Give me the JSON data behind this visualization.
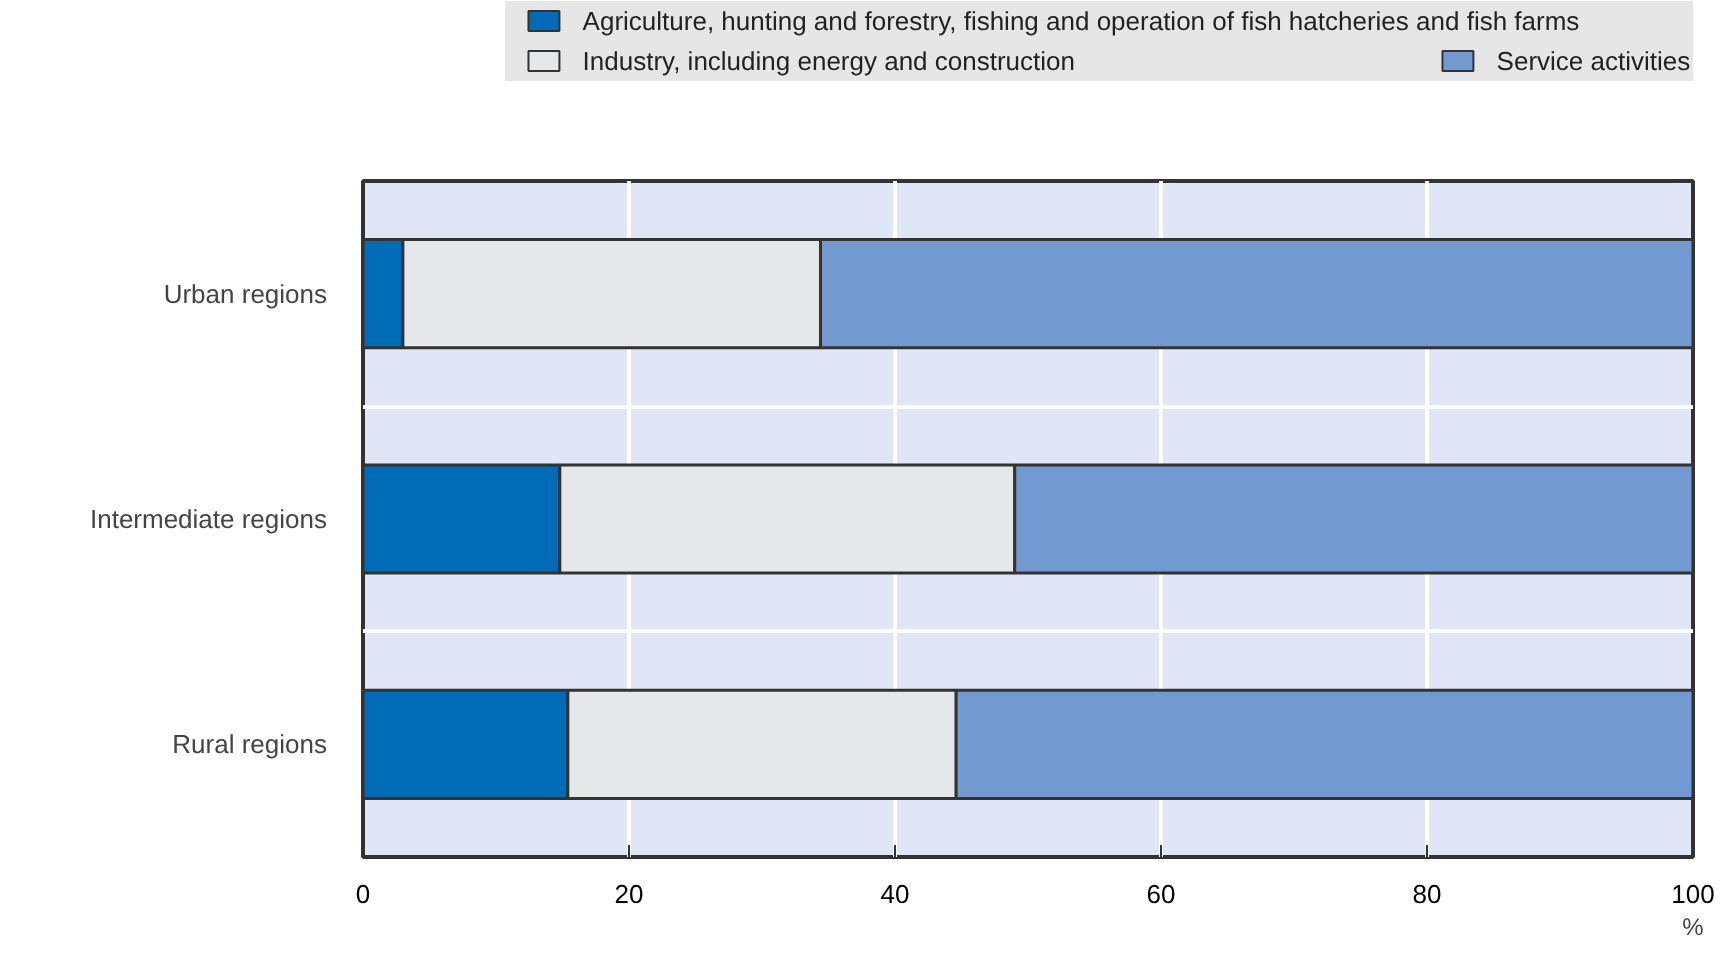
{
  "chart_data": {
    "type": "bar",
    "orientation": "horizontal",
    "stacked": true,
    "categories": [
      "Urban regions",
      "Intermediate regions",
      "Rural regions"
    ],
    "series": [
      {
        "name": "Agriculture, hunting and forestry, fishing and operation of fish hatcheries and fish farms",
        "color": "#006bb6",
        "values": [
          3.0,
          14.8,
          15.4
        ]
      },
      {
        "name": "Industry, including energy and construction",
        "color": "#e6e7e8",
        "values": [
          31.4,
          34.2,
          29.2
        ]
      },
      {
        "name": "Service activities",
        "color": "#7399d1",
        "values": [
          65.6,
          51.0,
          55.4
        ]
      }
    ],
    "xlim": [
      0,
      100
    ],
    "xticks": [
      0,
      20,
      40,
      60,
      80,
      100
    ],
    "xlabel": "%",
    "grid": true,
    "legend": "top"
  }
}
